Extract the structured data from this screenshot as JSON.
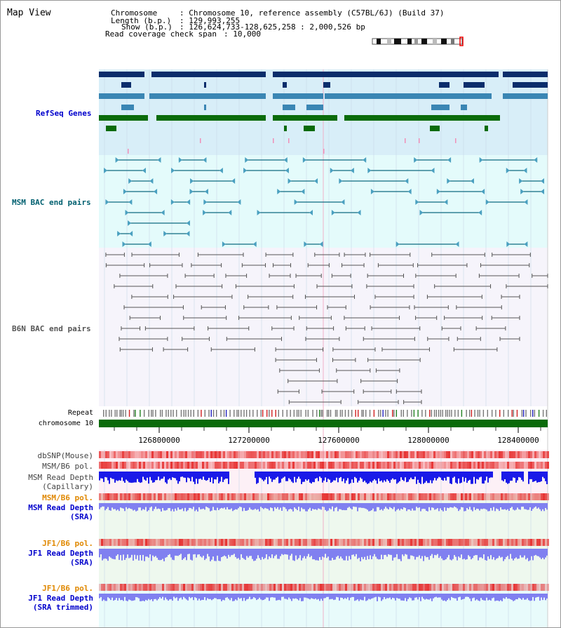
{
  "title": "Map View",
  "header": {
    "chromosome_label": "Chromosome",
    "chromosome_value": ": Chromosome 10, reference assembly (C57BL/6J) (Build 37)",
    "length_label": "Length (b.p.)",
    "length_value": ": 129,993,255",
    "show_label": "Show (b.p.)",
    "show_value": ": 126,624,733-128,625,258 : 2,000,526 bp",
    "coverage_label": "Read coverage check span",
    "coverage_value": ": 10,000"
  },
  "tracks": {
    "refseq": "RefSeq Genes",
    "msm_bac": "MSM BAC end pairs",
    "b6n_bac": "B6N BAC end pairs",
    "repeat": "Repeat",
    "chromosome": "chromosome 10",
    "dbsnp": "dbSNP(Mouse)",
    "msm_b6_pol_1": "MSM/B6 pol.",
    "msm_depth_cap_1": "MSM Read Depth",
    "msm_depth_cap_2": "(Capillary)",
    "msm_b6_pol_2": "MSM/B6 pol.",
    "msm_depth_sra_1": "MSM Read Depth",
    "msm_depth_sra_2": "(SRA)",
    "jf1_b6_pol_1": "JF1/B6 pol.",
    "jf1_depth_sra_1": "JF1 Read Depth",
    "jf1_depth_sra_2": "(SRA)",
    "jf1_b6_pol_2": "JF1/B6 pol.",
    "jf1_depth_trim_1": "JF1 Read Depth",
    "jf1_depth_trim_2": "(SRA trimmed)"
  },
  "axis": {
    "ticks": [
      "126800000",
      "127200000",
      "127600000",
      "128000000",
      "128400000"
    ]
  },
  "colors": {
    "refseq_dark": "#0b2d6b",
    "refseq_mid": "#3a86b4",
    "refseq_green": "#0a6b0a",
    "refseq_bg": "#d8eef8",
    "msm_bac_bg": "#e4fbfb",
    "msm_bac_line": "#0e6a80",
    "b6n_bg": "#f6f4fb",
    "b6n_line": "#555555",
    "chromosome": "#0a6b0a",
    "capillary_depth": "#1a1ae8",
    "sra_depth": "#8080f0",
    "label_blue": "#0000cc",
    "label_orange": "#e08800",
    "label_teal": "#006070"
  }
}
